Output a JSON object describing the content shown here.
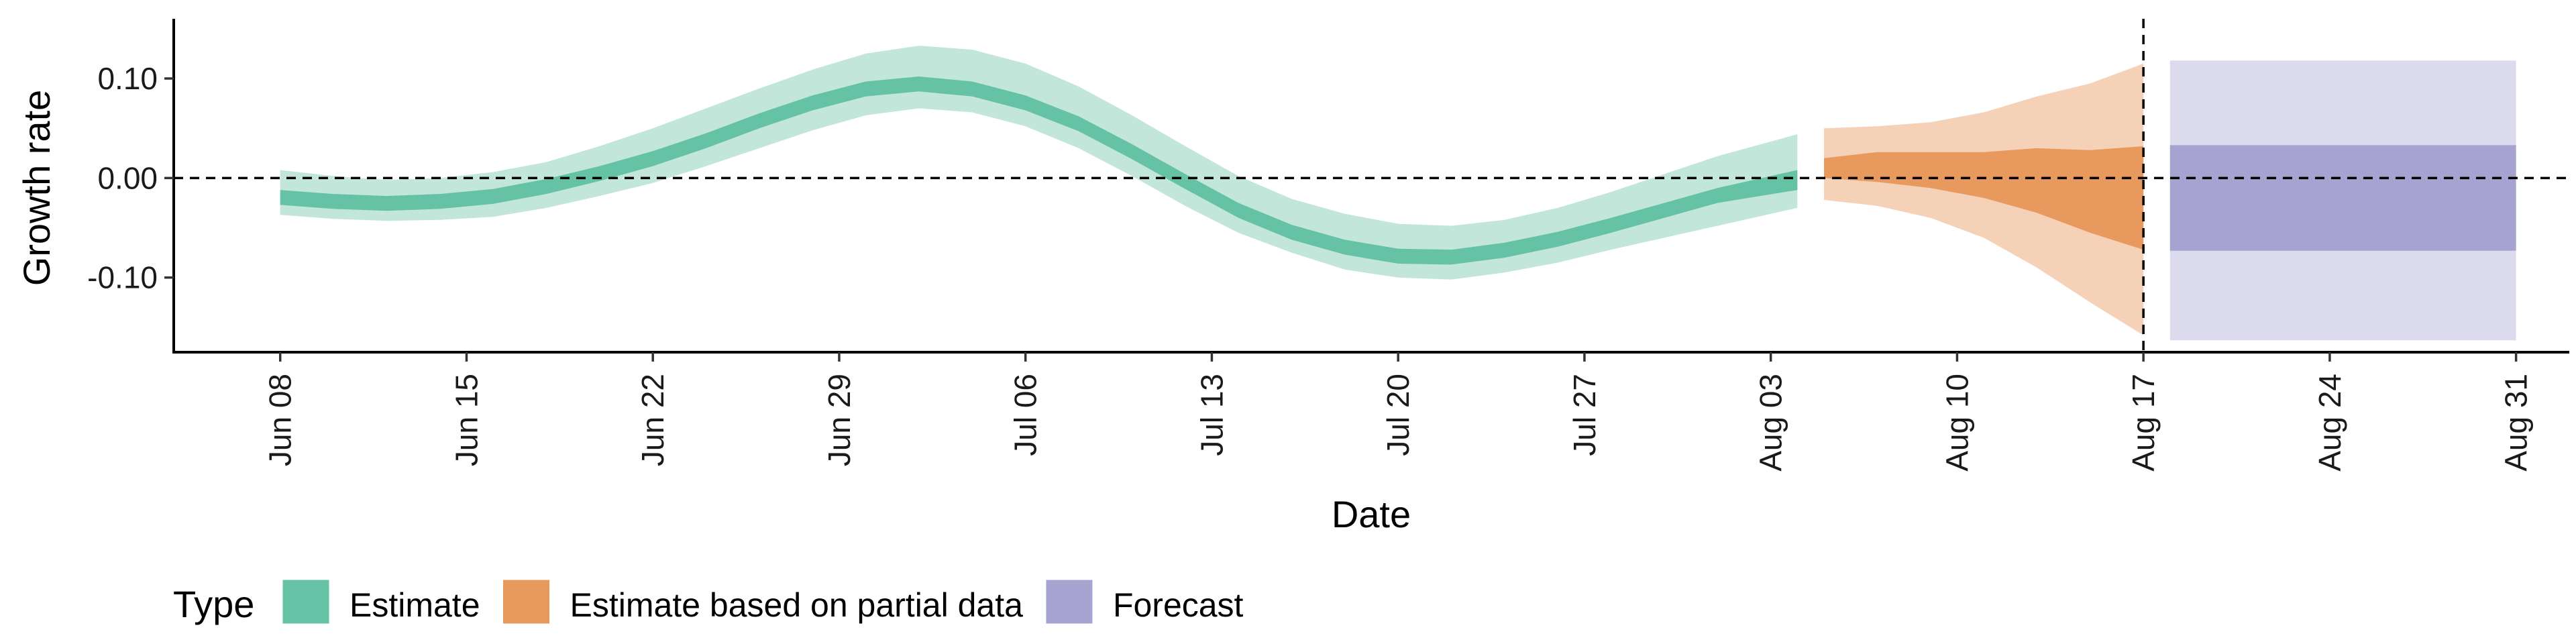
{
  "chart_data": {
    "type": "area",
    "xlabel": "Date",
    "ylabel": "Growth rate",
    "x_axis": "date",
    "xlim": [
      "2020-06-04",
      "2020-09-02"
    ],
    "ylim": [
      -0.175,
      0.16
    ],
    "y_ticks": [
      0.1,
      0.0,
      -0.1
    ],
    "y_tick_labels": [
      "0.10",
      "0.00",
      "-0.10"
    ],
    "x_ticks": [
      "2020-06-08",
      "2020-06-15",
      "2020-06-22",
      "2020-06-29",
      "2020-07-06",
      "2020-07-13",
      "2020-07-20",
      "2020-07-27",
      "2020-08-03",
      "2020-08-10",
      "2020-08-17",
      "2020-08-24",
      "2020-08-31"
    ],
    "x_tick_labels": [
      "Jun 08",
      "Jun 15",
      "Jun 22",
      "Jun 29",
      "Jul 06",
      "Jul 13",
      "Jul 20",
      "Jul 27",
      "Aug 03",
      "Aug 10",
      "Aug 17",
      "Aug 24",
      "Aug 31"
    ],
    "reference_lines": {
      "horizontal_y": 0.0,
      "vertical_x": "2020-08-17",
      "style": "dashed"
    },
    "grid": false,
    "legend": {
      "title": "Type",
      "position": "bottom-left",
      "entries": [
        "Estimate",
        "Estimate based on partial data",
        "Forecast"
      ]
    },
    "series": [
      {
        "name": "Estimate",
        "color_inner": "#66c2a5",
        "color_outer": "#c2e6d9",
        "x": [
          "2020-06-08",
          "2020-06-10",
          "2020-06-12",
          "2020-06-14",
          "2020-06-16",
          "2020-06-18",
          "2020-06-20",
          "2020-06-22",
          "2020-06-24",
          "2020-06-26",
          "2020-06-28",
          "2020-06-30",
          "2020-07-02",
          "2020-07-04",
          "2020-07-06",
          "2020-07-08",
          "2020-07-10",
          "2020-07-12",
          "2020-07-14",
          "2020-07-16",
          "2020-07-18",
          "2020-07-20",
          "2020-07-22",
          "2020-07-24",
          "2020-07-26",
          "2020-07-28",
          "2020-07-30",
          "2020-08-01",
          "2020-08-04"
        ],
        "outer_lower": [
          -0.037,
          -0.041,
          -0.043,
          -0.042,
          -0.039,
          -0.03,
          -0.018,
          -0.005,
          0.012,
          0.03,
          0.048,
          0.063,
          0.07,
          0.066,
          0.052,
          0.03,
          0.002,
          -0.028,
          -0.055,
          -0.075,
          -0.092,
          -0.1,
          -0.102,
          -0.095,
          -0.085,
          -0.072,
          -0.06,
          -0.048,
          -0.03
        ],
        "inner_lower": [
          -0.027,
          -0.031,
          -0.033,
          -0.031,
          -0.026,
          -0.016,
          -0.003,
          0.012,
          0.03,
          0.05,
          0.068,
          0.082,
          0.087,
          0.082,
          0.068,
          0.047,
          0.019,
          -0.011,
          -0.04,
          -0.062,
          -0.077,
          -0.086,
          -0.087,
          -0.08,
          -0.069,
          -0.055,
          -0.04,
          -0.025,
          -0.012
        ],
        "inner_upper": [
          -0.012,
          -0.016,
          -0.018,
          -0.016,
          -0.011,
          -0.001,
          0.012,
          0.027,
          0.045,
          0.065,
          0.083,
          0.097,
          0.102,
          0.097,
          0.083,
          0.062,
          0.034,
          0.004,
          -0.025,
          -0.047,
          -0.062,
          -0.071,
          -0.072,
          -0.065,
          -0.054,
          -0.04,
          -0.025,
          -0.01,
          0.008
        ],
        "outer_upper": [
          0.008,
          0.002,
          -0.002,
          0.0,
          0.006,
          0.016,
          0.032,
          0.05,
          0.07,
          0.09,
          0.109,
          0.125,
          0.133,
          0.129,
          0.115,
          0.092,
          0.063,
          0.032,
          0.002,
          -0.021,
          -0.036,
          -0.046,
          -0.048,
          -0.042,
          -0.03,
          -0.014,
          0.004,
          0.022,
          0.044
        ]
      },
      {
        "name": "Estimate based on partial data",
        "color_inner": "#e8995e",
        "color_outer": "#f5d1b8",
        "x": [
          "2020-08-05",
          "2020-08-07",
          "2020-08-09",
          "2020-08-11",
          "2020-08-13",
          "2020-08-15",
          "2020-08-17"
        ],
        "outer_lower": [
          -0.022,
          -0.028,
          -0.04,
          -0.06,
          -0.09,
          -0.125,
          -0.158
        ],
        "inner_lower": [
          0.0,
          -0.004,
          -0.01,
          -0.02,
          -0.035,
          -0.055,
          -0.072
        ],
        "inner_upper": [
          0.02,
          0.026,
          0.026,
          0.026,
          0.03,
          0.028,
          0.032
        ],
        "outer_upper": [
          0.05,
          0.052,
          0.056,
          0.066,
          0.082,
          0.095,
          0.115
        ]
      },
      {
        "name": "Forecast",
        "color_inner": "#a6a3d1",
        "color_outer": "#dcdbee",
        "x": [
          "2020-08-18",
          "2020-08-31"
        ],
        "outer_lower": [
          -0.163,
          -0.163
        ],
        "inner_lower": [
          -0.073,
          -0.073
        ],
        "inner_upper": [
          0.033,
          0.033
        ],
        "outer_upper": [
          0.118,
          0.118
        ]
      }
    ]
  }
}
